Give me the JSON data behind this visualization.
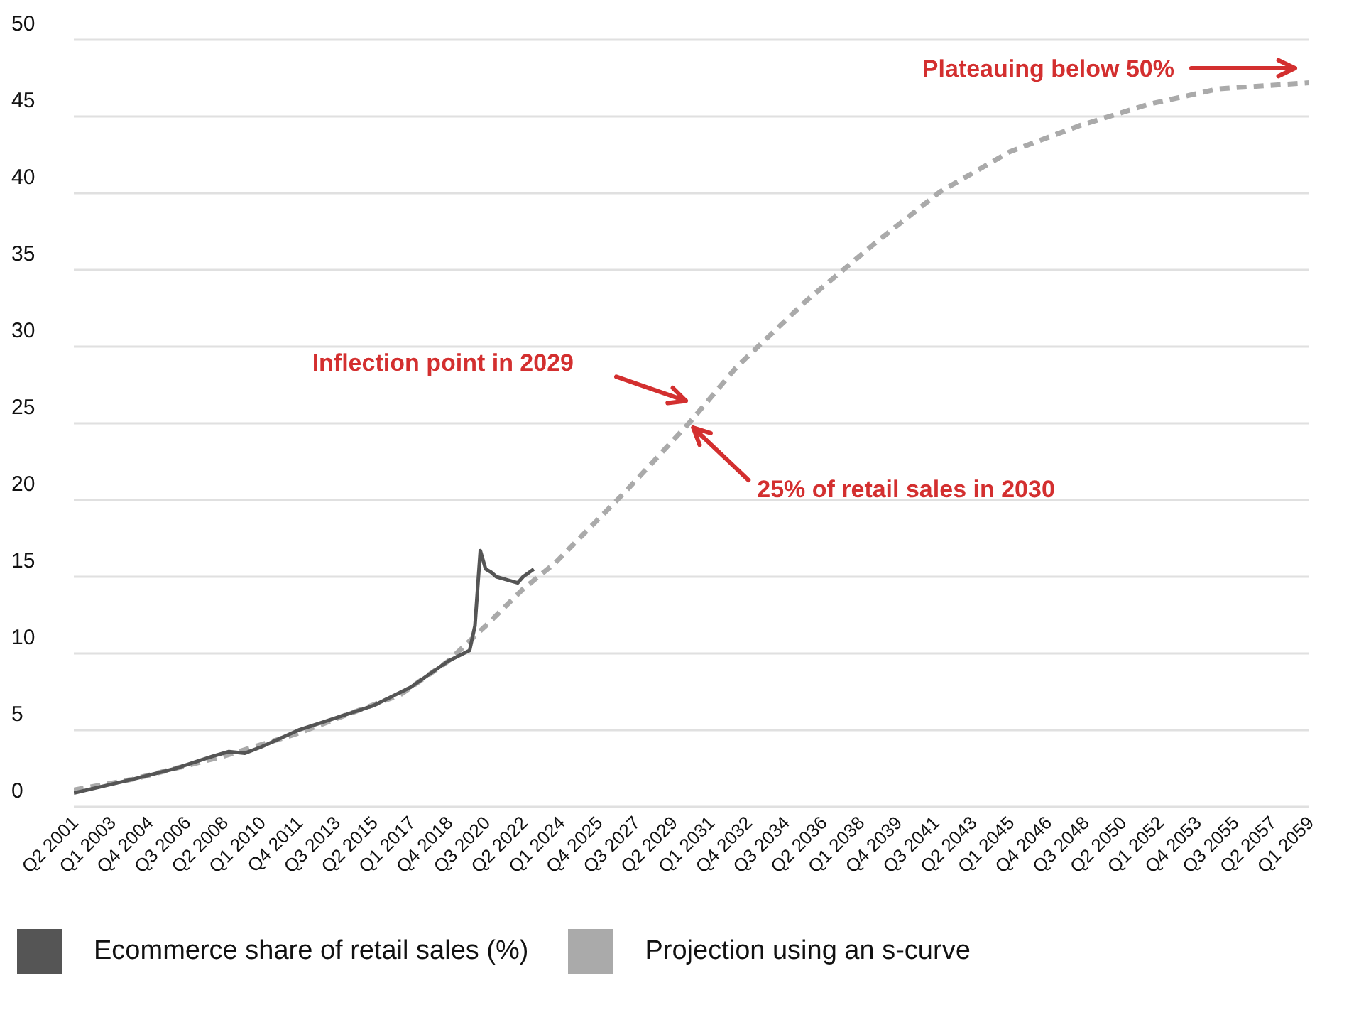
{
  "chart_data": {
    "type": "line",
    "xlim": [
      "2001-04",
      "2059-01"
    ],
    "xticks": [
      {
        "value": "2001-04",
        "label": "Q2 2001"
      },
      {
        "value": "2003-01",
        "label": "Q1 2003"
      },
      {
        "value": "2004-10",
        "label": "Q4 2004"
      },
      {
        "value": "2006-07",
        "label": "Q3 2006"
      },
      {
        "value": "2008-04",
        "label": "Q2 2008"
      },
      {
        "value": "2010-01",
        "label": "Q1 2010"
      },
      {
        "value": "2011-10",
        "label": "Q4 2011"
      },
      {
        "value": "2013-07",
        "label": "Q3 2013"
      },
      {
        "value": "2015-04",
        "label": "Q2 2015"
      },
      {
        "value": "2017-01",
        "label": "Q1 2017"
      },
      {
        "value": "2018-10",
        "label": "Q4 2018"
      },
      {
        "value": "2020-07",
        "label": "Q3 2020"
      },
      {
        "value": "2022-04",
        "label": "Q2 2022"
      },
      {
        "value": "2024-01",
        "label": "Q1 2024"
      },
      {
        "value": "2025-10",
        "label": "Q4 2025"
      },
      {
        "value": "2027-07",
        "label": "Q3 2027"
      },
      {
        "value": "2029-04",
        "label": "Q2 2029"
      },
      {
        "value": "2031-01",
        "label": "Q1 2031"
      },
      {
        "value": "2032-10",
        "label": "Q4 2032"
      },
      {
        "value": "2034-07",
        "label": "Q3 2034"
      },
      {
        "value": "2036-04",
        "label": "Q2 2036"
      },
      {
        "value": "2038-01",
        "label": "Q1 2038"
      },
      {
        "value": "2039-10",
        "label": "Q4 2039"
      },
      {
        "value": "2041-07",
        "label": "Q3 2041"
      },
      {
        "value": "2043-04",
        "label": "Q2 2043"
      },
      {
        "value": "2045-01",
        "label": "Q1 2045"
      },
      {
        "value": "2046-10",
        "label": "Q4 2046"
      },
      {
        "value": "2048-07",
        "label": "Q3 2048"
      },
      {
        "value": "2050-04",
        "label": "Q2 2050"
      },
      {
        "value": "2052-01",
        "label": "Q1 2052"
      },
      {
        "value": "2053-10",
        "label": "Q4 2053"
      },
      {
        "value": "2055-07",
        "label": "Q3 2055"
      },
      {
        "value": "2057-04",
        "label": "Q2 2057"
      },
      {
        "value": "2059-01",
        "label": "Q1 2059"
      }
    ],
    "ylim": [
      0,
      50
    ],
    "yticks": [
      0,
      5,
      10,
      15,
      20,
      25,
      30,
      35,
      40,
      45,
      50
    ],
    "grid": "y",
    "legend": "bottom",
    "marker": "none",
    "series": [
      {
        "name": "Projection using an s-curve",
        "color": "#aaaaaa",
        "line_style": "dashed",
        "x": [
          "2001-04",
          "2004-01",
          "2008-04",
          "2011-10",
          "2014-01",
          "2016-07",
          "2018-10",
          "2020-07",
          "2022-04",
          "2023-10",
          "2027-01",
          "2030-01",
          "2032-04",
          "2035-07",
          "2038-10",
          "2041-10",
          "2045-01",
          "2048-04",
          "2051-07",
          "2054-10",
          "2059-01"
        ],
        "values": [
          1.1,
          1.8,
          3.3,
          4.8,
          6.0,
          7.3,
          9.5,
          11.8,
          14.2,
          15.9,
          20.5,
          25.0,
          28.7,
          33.0,
          36.8,
          40.1,
          42.7,
          44.4,
          45.8,
          46.8,
          47.2
        ]
      },
      {
        "name": "Ecommerce share of retail sales (%)",
        "color": "#555555",
        "line_style": "solid",
        "x": [
          "2001-04",
          "2004-01",
          "2006-01",
          "2007-10",
          "2008-07",
          "2009-04",
          "2010-01",
          "2011-10",
          "2015-04",
          "2017-01",
          "2018-10",
          "2019-10",
          "2020-01",
          "2020-04",
          "2020-07",
          "2020-10",
          "2021-01",
          "2021-07",
          "2022-01",
          "2022-04",
          "2022-10"
        ],
        "values": [
          0.9,
          1.8,
          2.5,
          3.3,
          3.6,
          3.5,
          3.9,
          5.0,
          6.6,
          7.8,
          9.5,
          10.2,
          11.8,
          16.7,
          15.5,
          15.3,
          15.0,
          14.8,
          14.6,
          15.0,
          15.5
        ]
      }
    ],
    "annotations": [
      "Inflection point in 2029",
      {
        "text": "25% of retail sales in 2030",
        "x": "2030-01",
        "y": 25
      },
      "Plateauing below 50%"
    ]
  }
}
